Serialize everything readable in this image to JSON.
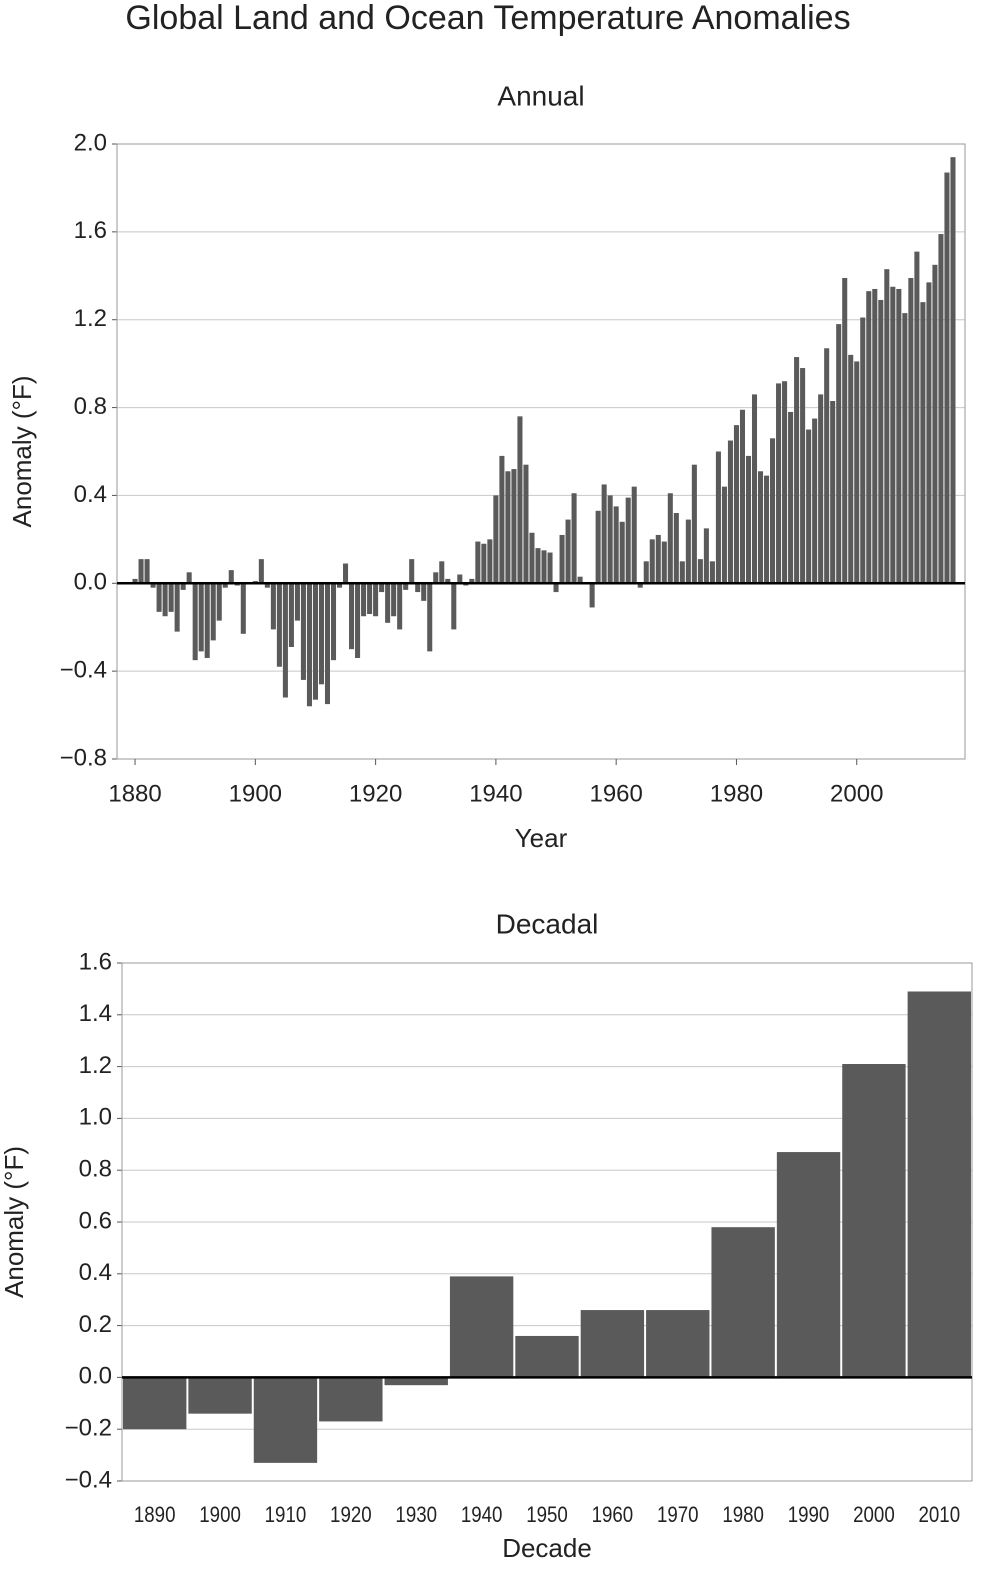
{
  "title": "Global Land and Ocean Temperature Anomalies",
  "chart_data": [
    {
      "type": "bar",
      "title": "Annual",
      "x_label": "Year",
      "y_label": "Anomaly (°F)",
      "color": "#5a5a5a",
      "grid": true,
      "x": [
        1880,
        1881,
        1882,
        1883,
        1884,
        1885,
        1886,
        1887,
        1888,
        1889,
        1890,
        1891,
        1892,
        1893,
        1894,
        1895,
        1896,
        1897,
        1898,
        1899,
        1900,
        1901,
        1902,
        1903,
        1904,
        1905,
        1906,
        1907,
        1908,
        1909,
        1910,
        1911,
        1912,
        1913,
        1914,
        1915,
        1916,
        1917,
        1918,
        1919,
        1920,
        1921,
        1922,
        1923,
        1924,
        1925,
        1926,
        1927,
        1928,
        1929,
        1930,
        1931,
        1932,
        1933,
        1934,
        1935,
        1936,
        1937,
        1938,
        1939,
        1940,
        1941,
        1942,
        1943,
        1944,
        1945,
        1946,
        1947,
        1948,
        1949,
        1950,
        1951,
        1952,
        1953,
        1954,
        1955,
        1956,
        1957,
        1958,
        1959,
        1960,
        1961,
        1962,
        1963,
        1964,
        1965,
        1966,
        1967,
        1968,
        1969,
        1970,
        1971,
        1972,
        1973,
        1974,
        1975,
        1976,
        1977,
        1978,
        1979,
        1980,
        1981,
        1982,
        1983,
        1984,
        1985,
        1986,
        1987,
        1988,
        1989,
        1990,
        1991,
        1992,
        1993,
        1994,
        1995,
        1996,
        1997,
        1998,
        1999,
        2000,
        2001,
        2002,
        2003,
        2004,
        2005,
        2006,
        2007,
        2008,
        2009,
        2010,
        2011,
        2012,
        2013,
        2014,
        2015,
        2016
      ],
      "values": [
        0.02,
        0.11,
        0.11,
        -0.02,
        -0.13,
        -0.15,
        -0.13,
        -0.22,
        -0.03,
        0.05,
        -0.35,
        -0.31,
        -0.34,
        -0.26,
        -0.17,
        -0.02,
        0.06,
        -0.01,
        -0.23,
        0.0,
        0.01,
        0.11,
        -0.02,
        -0.21,
        -0.38,
        -0.52,
        -0.29,
        -0.17,
        -0.44,
        -0.56,
        -0.53,
        -0.46,
        -0.55,
        -0.35,
        -0.02,
        0.09,
        -0.3,
        -0.34,
        -0.15,
        -0.14,
        -0.15,
        -0.04,
        -0.18,
        -0.15,
        -0.21,
        -0.03,
        0.11,
        -0.04,
        -0.08,
        -0.31,
        0.05,
        0.1,
        0.02,
        -0.21,
        0.04,
        -0.01,
        0.02,
        0.19,
        0.18,
        0.2,
        0.4,
        0.58,
        0.51,
        0.52,
        0.76,
        0.54,
        0.23,
        0.16,
        0.15,
        0.14,
        -0.04,
        0.22,
        0.29,
        0.41,
        0.03,
        0.0,
        -0.11,
        0.33,
        0.45,
        0.4,
        0.35,
        0.28,
        0.39,
        0.44,
        -0.02,
        0.1,
        0.2,
        0.22,
        0.19,
        0.41,
        0.32,
        0.1,
        0.29,
        0.54,
        0.11,
        0.25,
        0.1,
        0.6,
        0.44,
        0.65,
        0.72,
        0.79,
        0.58,
        0.86,
        0.51,
        0.49,
        0.66,
        0.91,
        0.92,
        0.78,
        1.03,
        0.98,
        0.7,
        0.75,
        0.86,
        1.07,
        0.83,
        1.18,
        1.39,
        1.04,
        1.01,
        1.21,
        1.33,
        1.34,
        1.29,
        1.43,
        1.35,
        1.34,
        1.23,
        1.39,
        1.51,
        1.28,
        1.37,
        1.45,
        1.59,
        1.87,
        1.94
      ],
      "xlim": [
        1877,
        2018
      ],
      "xticks": [
        1880,
        1900,
        1920,
        1940,
        1960,
        1980,
        2000
      ],
      "ylim": [
        -0.8,
        2.0
      ],
      "yticks": [
        {
          "value": -0.8,
          "label": "−0.8"
        },
        {
          "value": -0.4,
          "label": "−0.4"
        },
        {
          "value": 0,
          "label": "0.0"
        },
        0.4,
        0.8,
        1.2,
        1.6,
        {
          "value": 2,
          "label": "2.0"
        }
      ]
    },
    {
      "type": "bar",
      "title": "Decadal",
      "x_label": "Decade",
      "y_label": "Anomaly (°F)",
      "color": "#5a5a5a",
      "grid": true,
      "categories": [
        "1890",
        "1900",
        "1910",
        "1920",
        "1930",
        "1940",
        "1950",
        "1960",
        "1970",
        "1980",
        "1990",
        "2000",
        "2010"
      ],
      "values": [
        -0.2,
        -0.14,
        -0.33,
        -0.17,
        -0.03,
        0.39,
        0.16,
        0.26,
        0.26,
        0.58,
        0.87,
        1.21,
        1.49
      ],
      "ylim": [
        -0.4,
        1.6
      ],
      "yticks": [
        {
          "value": -0.4,
          "label": "−0.4"
        },
        {
          "value": -0.2,
          "label": "−0.2"
        },
        {
          "value": 0,
          "label": "0.0"
        },
        0.2,
        0.4,
        0.6,
        0.8,
        {
          "value": 1,
          "label": "1.0"
        },
        1.2,
        1.4,
        1.6
      ]
    }
  ]
}
